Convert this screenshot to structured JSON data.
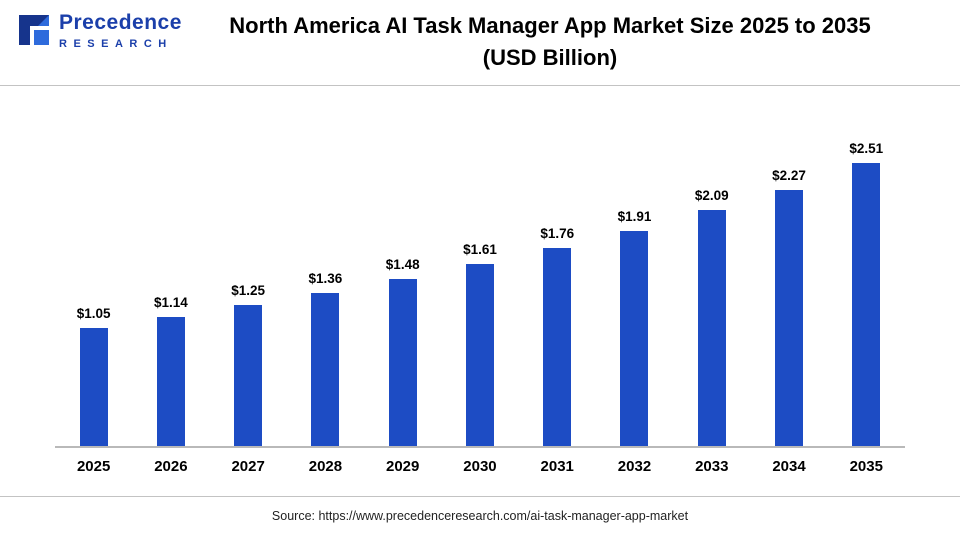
{
  "header": {
    "logo": {
      "name": "Precedence",
      "subtitle": "RESEARCH",
      "brand_color": "#1b3faa"
    },
    "title_line1": "North America AI Task Manager App Market Size 2025 to 2035",
    "title_line2": "(USD Billion)"
  },
  "chart_data": {
    "type": "bar",
    "title": "North America AI Task Manager App Market Size 2025 to 2035 (USD Billion)",
    "categories": [
      "2025",
      "2026",
      "2027",
      "2028",
      "2029",
      "2030",
      "2031",
      "2032",
      "2033",
      "2034",
      "2035"
    ],
    "values": [
      1.05,
      1.14,
      1.25,
      1.36,
      1.48,
      1.61,
      1.76,
      1.91,
      2.09,
      2.27,
      2.51
    ],
    "value_labels": [
      "$1.05",
      "$1.14",
      "$1.25",
      "$1.36",
      "$1.48",
      "$1.61",
      "$1.76",
      "$1.91",
      "$2.09",
      "$2.27",
      "$2.51"
    ],
    "unit": "USD Billion",
    "bar_color": "#1d4cc4",
    "xlabel": "",
    "ylabel": "",
    "ylim": [
      0,
      2.8
    ],
    "grid": false,
    "legend": "none"
  },
  "footer": {
    "source": "Source: https://www.precedenceresearch.com/ai-task-manager-app-market"
  }
}
